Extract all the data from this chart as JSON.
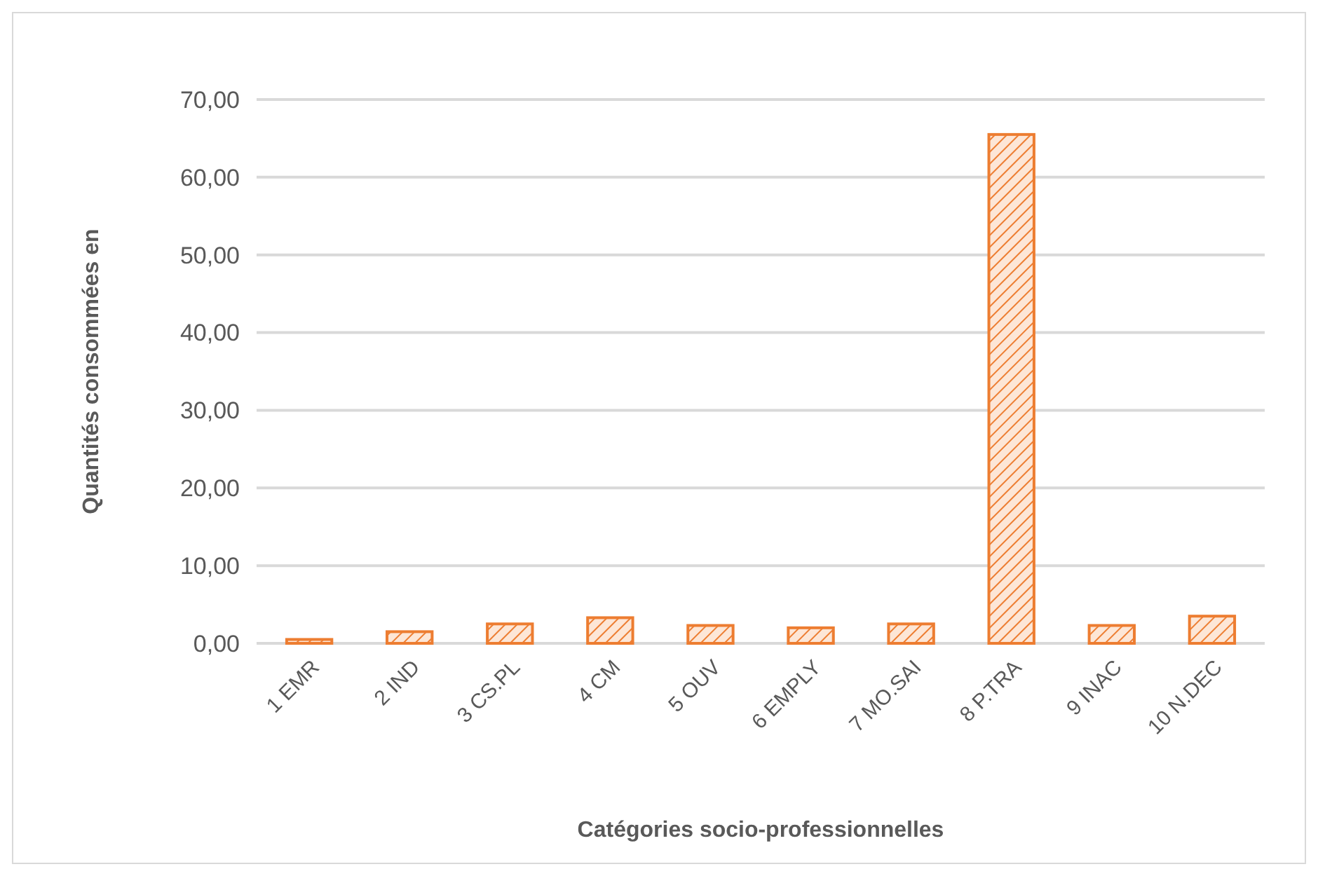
{
  "chart_data": {
    "type": "bar",
    "xlabel": "Catégories socio-professionnelles",
    "ylabel": "Quantités consommées en",
    "categories": [
      "1 EMR",
      "2 IND",
      "3 CS.PL",
      "4 CM",
      "5 OUV",
      "6 EMPLY",
      "7 MO.SAI",
      "8 P.TRA",
      "9 INAC",
      "10 N.DEC"
    ],
    "values": [
      0.5,
      1.5,
      2.5,
      3.3,
      2.3,
      2.0,
      2.5,
      65.5,
      2.3,
      3.5
    ],
    "color": "#ed7d31",
    "ylim": [
      0,
      70
    ],
    "yticks": [
      {
        "value": 0,
        "label": "0,00"
      },
      {
        "value": 10,
        "label": "10,00"
      },
      {
        "value": 20,
        "label": "20,00"
      },
      {
        "value": 30,
        "label": "30,00"
      },
      {
        "value": 40,
        "label": "40,00"
      },
      {
        "value": 50,
        "label": "50,00"
      },
      {
        "value": 60,
        "label": "60,00"
      },
      {
        "value": 70,
        "label": "70,00"
      }
    ],
    "grid": true
  }
}
